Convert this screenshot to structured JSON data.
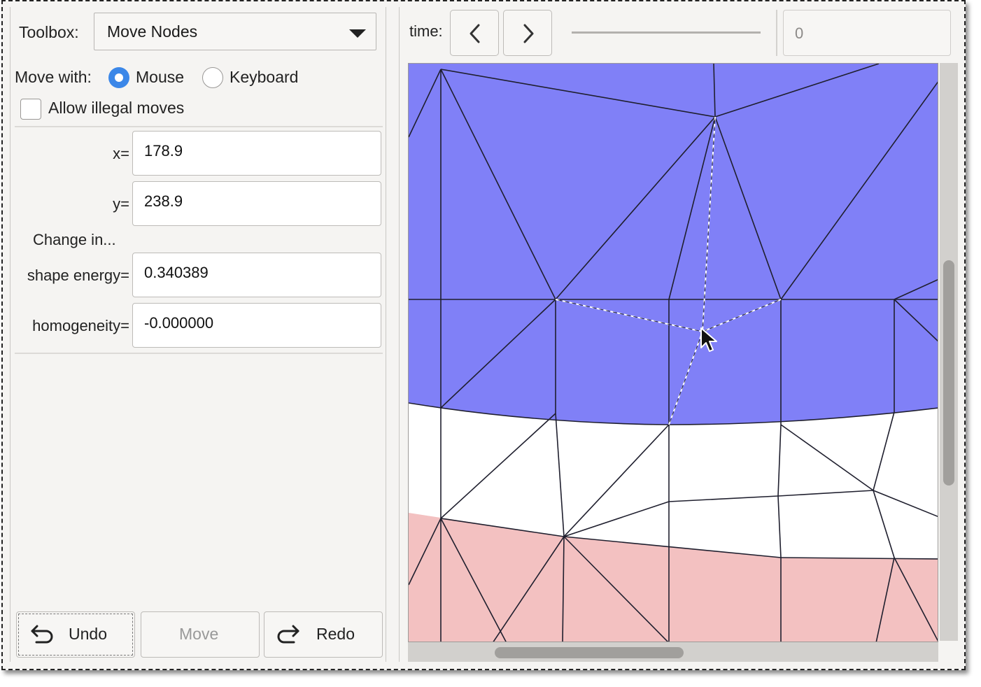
{
  "toolbox": {
    "label": "Toolbox:",
    "selected": "Move Nodes"
  },
  "move_with": {
    "label": "Move with:",
    "options": [
      "Mouse",
      "Keyboard"
    ],
    "selected": "Mouse"
  },
  "allow_illegal": {
    "label": "Allow illegal moves",
    "checked": false
  },
  "coords": {
    "x_label": "x=",
    "x_value": "178.9",
    "y_label": "y=",
    "y_value": "238.9"
  },
  "change": {
    "heading": "Change in...",
    "shape_energy_label": "shape energy=",
    "shape_energy_value": "0.340389",
    "homogeneity_label": "homogeneity=",
    "homogeneity_value": "-0.000000"
  },
  "buttons": {
    "undo": "Undo",
    "move": "Move",
    "redo": "Redo"
  },
  "time": {
    "label": "time:",
    "value": "0"
  },
  "colors": {
    "accent": "#3b87e8",
    "mesh_blue": "#8080f7",
    "mesh_white": "#ffffff",
    "mesh_pink": "#f3c1c1"
  },
  "icons": {
    "dropdown": "chevron-down-icon",
    "prev": "chevron-left-icon",
    "next": "chevron-right-icon",
    "undo": "undo-arrow-icon",
    "redo": "redo-arrow-icon",
    "cursor": "mouse-pointer-icon"
  }
}
